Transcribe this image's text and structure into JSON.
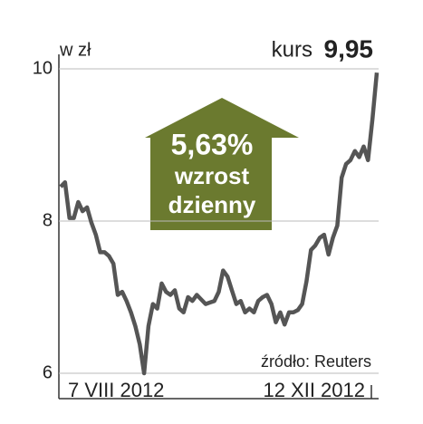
{
  "chart_data": {
    "type": "line",
    "title": "kurs",
    "title_value": "9,95",
    "y_label": "w zł",
    "annotation": {
      "value_text": "5,63%",
      "line1": "wzrost",
      "line2": "dzienny"
    },
    "source": "źródło: Reuters",
    "categories": [
      "7 VIII 2012",
      null,
      null,
      null,
      null,
      null,
      null,
      null,
      null,
      null,
      null,
      null,
      null,
      null,
      null,
      null,
      null,
      null,
      null,
      null,
      null,
      null,
      null,
      null,
      null,
      null,
      null,
      null,
      null,
      null,
      null,
      null,
      null,
      null,
      null,
      null,
      null,
      null,
      null,
      null,
      null,
      null,
      null,
      null,
      null,
      null,
      null,
      null,
      null,
      null,
      null,
      null,
      null,
      null,
      null,
      null,
      null,
      null,
      null,
      null,
      null,
      null,
      null,
      null,
      null,
      null,
      null,
      null,
      null,
      null,
      null,
      null,
      "12 XII 2012"
    ],
    "series": [
      {
        "name": "kurs",
        "color": "#555555",
        "values": [
          8.45,
          8.51,
          8.04,
          8.04,
          8.25,
          8.13,
          8.18,
          7.98,
          7.82,
          7.59,
          7.59,
          7.54,
          7.44,
          7.03,
          7.07,
          6.95,
          6.8,
          6.62,
          6.38,
          6.0,
          6.62,
          6.91,
          6.85,
          7.18,
          7.07,
          7.03,
          7.09,
          6.85,
          6.8,
          7.0,
          6.95,
          7.03,
          6.97,
          6.91,
          6.93,
          6.95,
          7.07,
          7.35,
          7.27,
          7.09,
          6.91,
          6.95,
          6.8,
          6.85,
          6.8,
          6.95,
          7.0,
          7.03,
          6.91,
          6.67,
          6.8,
          6.64,
          6.8,
          6.8,
          6.83,
          6.91,
          7.21,
          7.62,
          7.68,
          7.78,
          7.82,
          7.56,
          7.78,
          7.94,
          8.57,
          8.75,
          8.8,
          8.92,
          8.84,
          8.98,
          8.8,
          9.34,
          9.95
        ]
      }
    ],
    "ylim": [
      6,
      10
    ],
    "yticks": [
      6,
      8,
      10
    ],
    "grid": true,
    "arrow_color": "#6b7a2f"
  }
}
